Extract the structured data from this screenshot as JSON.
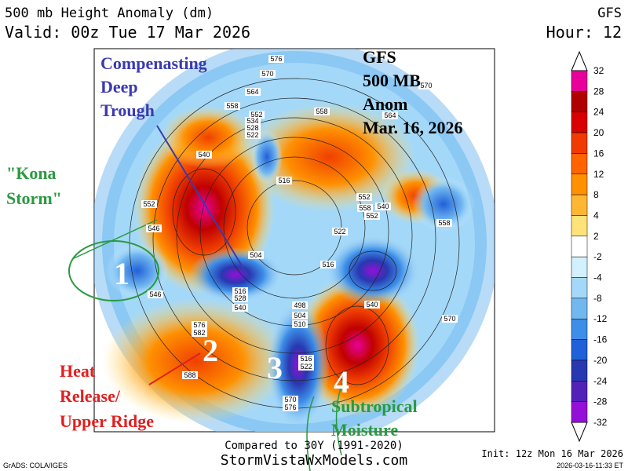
{
  "header": {
    "title": "500 mb Height Anomaly (dm)",
    "valid": "Valid: 00z Tue 17 Mar 2026",
    "model": "GFS",
    "hour": "Hour: 12"
  },
  "annotations": {
    "trough": [
      "Compenasting",
      "Deep",
      "Trough"
    ],
    "gfs_box": [
      "GFS",
      "500 MB",
      "Anom",
      "Mar. 16, 2026"
    ],
    "kona": [
      "\"Kona",
      "Storm\""
    ],
    "heat": [
      "Heat",
      "Release/",
      "Upper Ridge"
    ],
    "subtropical": [
      "Subtropical",
      "Moisture"
    ],
    "numbers": [
      "1",
      "2",
      "3",
      "4"
    ]
  },
  "contour_labels": [
    "576",
    "570",
    "564",
    "558",
    "552",
    "534",
    "528",
    "522",
    "540",
    "516",
    "552",
    "546",
    "540",
    "522",
    "558",
    "564",
    "570",
    "552",
    "558",
    "552",
    "504",
    "546",
    "516",
    "528",
    "540",
    "516",
    "498",
    "504",
    "510",
    "540",
    "576",
    "582",
    "588",
    "516",
    "522",
    "570",
    "576",
    "570",
    "558"
  ],
  "colorbar": {
    "labels": [
      "32",
      "28",
      "24",
      "20",
      "16",
      "12",
      "8",
      "4",
      "2",
      "-2",
      "-4",
      "-8",
      "-12",
      "-16",
      "-20",
      "-24",
      "-28",
      "-32"
    ],
    "colors": [
      "#e8009a",
      "#b00000",
      "#d80000",
      "#f03a00",
      "#ff6400",
      "#ff9000",
      "#ffb733",
      "#ffe27a",
      "#ffffff",
      "#d2f0ff",
      "#a4d8f8",
      "#72b8f0",
      "#3c8ee8",
      "#2060d8",
      "#2838b0",
      "#5222b8",
      "#9410d8"
    ]
  },
  "footer": {
    "compared": "Compared to 30Y (1991-2020)",
    "site": "StormVistaWxModels.com",
    "grads": "GrADS: COLA/IGES",
    "init": "Init: 12z Mon 16 Mar 2026",
    "stamp": "2026-03-16-11:33 ET"
  }
}
